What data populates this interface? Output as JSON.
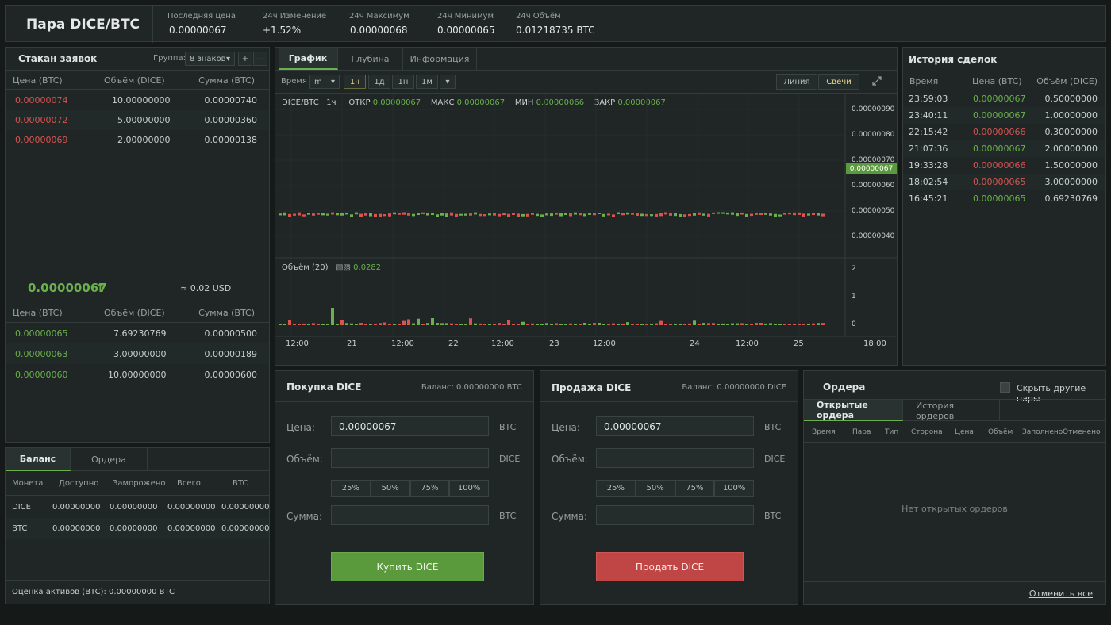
{
  "header": {
    "pair": "Пара DICE/BTC",
    "stats": [
      {
        "label": "Последняя цена",
        "value": "0.00000067"
      },
      {
        "label": "24ч Изменение",
        "value": "+1.52%"
      },
      {
        "label": "24ч Максимум",
        "value": "0.00000068"
      },
      {
        "label": "24ч Минимум",
        "value": "0.00000065"
      },
      {
        "label": "24ч Объём",
        "value": "0.01218735 BTC"
      }
    ]
  },
  "orderbook": {
    "title": "Стакан заявок",
    "group_label": "Группа:",
    "group_value": "8 знаков",
    "plus": "+",
    "minus": "—",
    "columns": [
      "Цена (BTC)",
      "Объём (DICE)",
      "Сумма (BTC)"
    ],
    "asks": [
      [
        "0.00000074",
        "10.00000000",
        "0.00000740"
      ],
      [
        "0.00000072",
        "5.00000000",
        "0.00000360"
      ],
      [
        "0.00000069",
        "2.00000000",
        "0.00000138"
      ]
    ],
    "last_price": "0.00000067",
    "arrow": "↑",
    "usd": "≈ 0.02 USD",
    "bids": [
      [
        "0.00000065",
        "7.69230769",
        "0.00000500"
      ],
      [
        "0.00000063",
        "3.00000000",
        "0.00000189"
      ],
      [
        "0.00000060",
        "10.00000000",
        "0.00000600"
      ]
    ]
  },
  "balance": {
    "tabs": [
      "Баланс",
      "Ордера"
    ],
    "columns": [
      "Монета",
      "Доступно",
      "Заморожено",
      "Всего",
      "BTC"
    ],
    "rows": [
      [
        "DICE",
        "0.00000000",
        "0.00000000",
        "0.00000000",
        "0.00000000"
      ],
      [
        "BTC",
        "0.00000000",
        "0.00000000",
        "0.00000000",
        "0.00000000"
      ]
    ],
    "estimate": "Оценка активов (BTC): 0.00000000  BTC"
  },
  "chart": {
    "tabs": [
      "График",
      "Глубина",
      "Информация"
    ],
    "time_label": "Время",
    "interval_select": "m",
    "intervals": [
      "1ч",
      "1д",
      "1н",
      "1м"
    ],
    "dropdown": "▾",
    "modes": [
      "Линия",
      "Свечи"
    ],
    "info": {
      "pair": "DICE/BTC",
      "period": "1ч",
      "open_label": "ОТКР",
      "open": "0.00000067",
      "high_label": "МАКС",
      "high": "0.00000067",
      "low_label": "МИН",
      "low": "0.00000066",
      "close_label": "ЗАКР",
      "close": "0.00000067"
    },
    "price_ticks": [
      "0.00000090",
      "0.00000080",
      "0.00000070",
      "0.00000060",
      "0.00000050",
      "0.00000040"
    ],
    "current_price": "0.00000067",
    "volume_label": "Объём (20)",
    "volume_value": "0.0282",
    "volume_ticks": [
      "2",
      "1",
      "0"
    ],
    "x_labels": [
      "12:00",
      "21",
      "12:00",
      "22",
      "12:00",
      "23",
      "12:00",
      "24",
      "12:00",
      "25",
      "18:00"
    ]
  },
  "trades": {
    "title": "История сделок",
    "columns": [
      "Время",
      "Цена (BTC)",
      "Объём (DICE)"
    ],
    "rows": [
      {
        "time": "23:59:03",
        "price": "0.00000067",
        "volume": "0.50000000",
        "side": "buy"
      },
      {
        "time": "23:40:11",
        "price": "0.00000067",
        "volume": "1.00000000",
        "side": "buy"
      },
      {
        "time": "22:15:42",
        "price": "0.00000066",
        "volume": "0.30000000",
        "side": "sell"
      },
      {
        "time": "21:07:36",
        "price": "0.00000067",
        "volume": "2.00000000",
        "side": "buy"
      },
      {
        "time": "19:33:28",
        "price": "0.00000066",
        "volume": "1.50000000",
        "side": "sell"
      },
      {
        "time": "18:02:54",
        "price": "0.00000065",
        "volume": "3.00000000",
        "side": "sell"
      },
      {
        "time": "16:45:21",
        "price": "0.00000065",
        "volume": "0.69230769",
        "side": "buy"
      }
    ]
  },
  "buy": {
    "title": "Покупка DICE",
    "balance": "Баланс:  0.00000000  BTC",
    "price_label": "Цена:",
    "price_value": "0.00000067",
    "price_unit": "BTC",
    "amount_label": "Объём:",
    "amount_unit": "DICE",
    "total_label": "Сумма:",
    "total_unit": "BTC",
    "percents": [
      "25%",
      "50%",
      "75%",
      "100%"
    ],
    "button": "Купить  DICE"
  },
  "sell": {
    "title": "Продажа DICE",
    "balance": "Баланс:  0.00000000  DICE",
    "price_label": "Цена:",
    "price_value": "0.00000067",
    "price_unit": "BTC",
    "amount_label": "Объём:",
    "amount_unit": "DICE",
    "total_label": "Сумма:",
    "total_unit": "BTC",
    "percents": [
      "25%",
      "50%",
      "75%",
      "100%"
    ],
    "button": "Продать DICE"
  },
  "orders": {
    "title": "Ордера",
    "hide_label": "Скрыть другие пары",
    "tabs": [
      "Открытые ордера",
      "История ордеров"
    ],
    "columns": [
      "Время",
      "Пара",
      "Тип",
      "Сторона",
      "Цена",
      "Объём",
      "Заполнено",
      "Отменено"
    ],
    "empty": "Нет открытых ордеров",
    "cancel_all": "Отменить все"
  },
  "colors": {
    "green": "#6ab04c",
    "red": "#d9534f",
    "buy_button": "#5a9a3c",
    "sell_button": "#c04545"
  }
}
